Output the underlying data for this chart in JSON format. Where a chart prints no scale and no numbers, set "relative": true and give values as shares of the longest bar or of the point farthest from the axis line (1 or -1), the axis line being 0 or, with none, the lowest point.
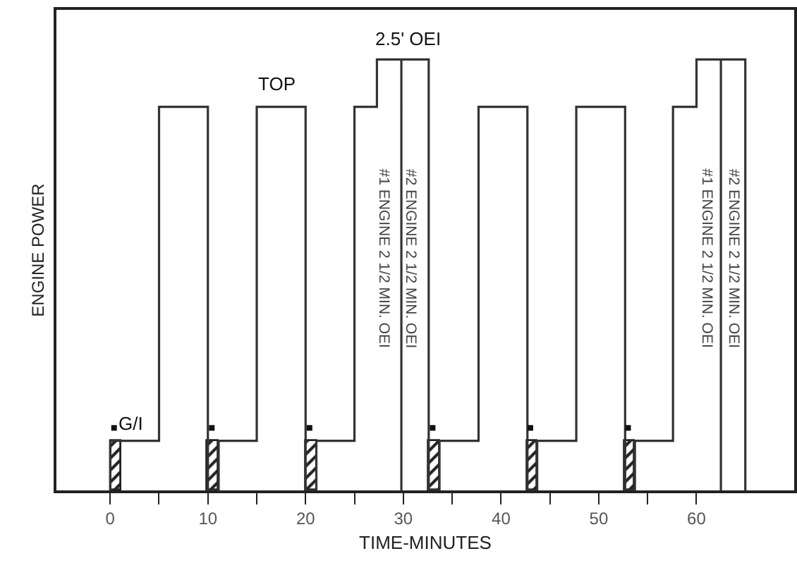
{
  "chart_data": {
    "type": "step",
    "relative": true,
    "xlabel": "TIME-MINUTES",
    "ylabel": "ENGINE POWER",
    "xlim": [
      -5.5,
      70
    ],
    "xticks": [
      0,
      {
        "value": 5,
        "label": null
      },
      10,
      {
        "value": 15,
        "label": null
      },
      20,
      {
        "value": 25,
        "label": null
      },
      30,
      {
        "value": 35,
        "label": null
      },
      40,
      {
        "value": 45,
        "label": null
      },
      50,
      {
        "value": 55,
        "label": null
      },
      60
    ],
    "grid": false,
    "legend": false,
    "tick_labels": "x",
    "series": [
      {
        "color": "#333333",
        "x": [
          0,
          0,
          5,
          10,
          11.1,
          15,
          20,
          21.1,
          25,
          27.3,
          29.8,
          29.8,
          32.6,
          33.7,
          37.7,
          42.7,
          43.7,
          47.7,
          52.7,
          53.7,
          57.6,
          60,
          62.5,
          62.5,
          65
        ],
        "values": [
          0,
          0.115,
          0.89,
          0,
          0.115,
          0.89,
          0,
          0.115,
          0.89,
          1,
          0,
          1,
          0,
          0.115,
          0.89,
          0,
          0.115,
          0.89,
          0,
          0.115,
          0.89,
          1,
          0,
          1,
          0
        ]
      },
      {
        "type": "bar",
        "color": "#222222",
        "x": [
          0.65,
          10.55,
          20.6,
          33.15,
          43.2,
          53.2
        ],
        "values": [
          0.115,
          0.115,
          0.115,
          0.115,
          0.115,
          0.115
        ]
      },
      {
        "type": "scatter",
        "marker": "square",
        "color": "#111111",
        "x": [
          0.4,
          10.4,
          20.4,
          33,
          43,
          53
        ],
        "values": [
          0.145,
          0.145,
          0.145,
          0.145,
          0.145,
          0.145
        ]
      }
    ],
    "annotations": [
      "G/I",
      "TOP",
      "2.5' OEI",
      "#1 ENGINE 2 1/2 MIN. OEI",
      "#2 ENGINE 2 1/2 MIN. OEI",
      "#1 ENGINE 2 1/2 MIN. OEI",
      "#2 ENGINE 2 1/2 MIN. OEI"
    ]
  }
}
